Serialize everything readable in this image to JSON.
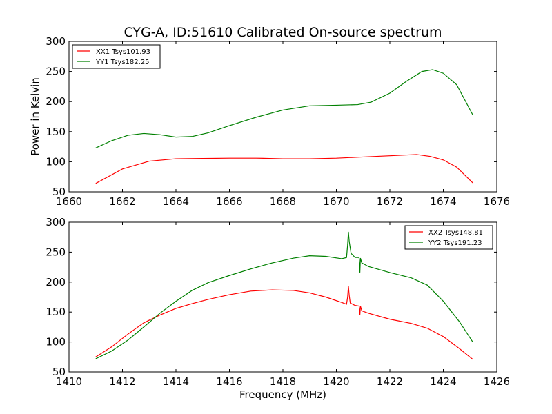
{
  "figure": {
    "title": "CYG-A, ID:51610 Calibrated On-source spectrum"
  },
  "chart_data": [
    {
      "type": "line",
      "title": "CYG-A, ID:51610 Calibrated On-source spectrum",
      "xlabel": "",
      "ylabel": "Power in Kelvin",
      "xlim": [
        1660,
        1676
      ],
      "ylim": [
        50,
        300
      ],
      "xticks": [
        "1660",
        "1662",
        "1664",
        "1666",
        "1668",
        "1670",
        "1672",
        "1674",
        "1676"
      ],
      "yticks": [
        "50",
        "100",
        "150",
        "200",
        "250",
        "300"
      ],
      "legend_position": "upper-left",
      "grid": false,
      "series": [
        {
          "name": "XX1 Tsys101.93",
          "color": "#ff0000",
          "points": [
            [
              1661,
              64
            ],
            [
              1662,
              88
            ],
            [
              1663,
              101
            ],
            [
              1664,
              105
            ],
            [
              1665,
              105.5
            ],
            [
              1666,
              106
            ],
            [
              1667,
              106
            ],
            [
              1668,
              105
            ],
            [
              1669,
              105
            ],
            [
              1670,
              106
            ],
            [
              1671,
              108
            ],
            [
              1672,
              110
            ],
            [
              1673,
              112
            ],
            [
              1673.5,
              109
            ],
            [
              1674,
              103
            ],
            [
              1674.5,
              91
            ],
            [
              1675.1,
              65
            ]
          ]
        },
        {
          "name": "YY1 Tsys182.25",
          "color": "#008000",
          "points": [
            [
              1661,
              123
            ],
            [
              1661.6,
              135
            ],
            [
              1662.2,
              144
            ],
            [
              1662.8,
              147
            ],
            [
              1663.4,
              145
            ],
            [
              1664,
              141
            ],
            [
              1664.6,
              142
            ],
            [
              1665.2,
              148
            ],
            [
              1666,
              160
            ],
            [
              1667,
              174
            ],
            [
              1668,
              186
            ],
            [
              1669,
              193
            ],
            [
              1670,
              194
            ],
            [
              1670.8,
              195
            ],
            [
              1671.3,
              199
            ],
            [
              1672,
              214
            ],
            [
              1672.6,
              233
            ],
            [
              1673.2,
              250
            ],
            [
              1673.6,
              253
            ],
            [
              1674,
              247
            ],
            [
              1674.5,
              228
            ],
            [
              1675.1,
              178
            ]
          ]
        }
      ]
    },
    {
      "type": "line",
      "title": "",
      "xlabel": "Frequency (MHz)",
      "ylabel": "",
      "xlim": [
        1410,
        1426
      ],
      "ylim": [
        50,
        300
      ],
      "xticks": [
        "1410",
        "1412",
        "1414",
        "1416",
        "1418",
        "1420",
        "1422",
        "1424",
        "1426"
      ],
      "yticks": [
        "50",
        "100",
        "150",
        "200",
        "250",
        "300"
      ],
      "legend_position": "upper-right",
      "grid": false,
      "series": [
        {
          "name": "XX2 Tsys148.81",
          "color": "#ff0000",
          "points": [
            [
              1411,
              75
            ],
            [
              1411.6,
              92
            ],
            [
              1412.2,
              113
            ],
            [
              1412.8,
              132
            ],
            [
              1413.4,
              145
            ],
            [
              1414,
              156
            ],
            [
              1414.6,
              164
            ],
            [
              1415.2,
              171
            ],
            [
              1416,
              179
            ],
            [
              1416.8,
              185
            ],
            [
              1417.6,
              187
            ],
            [
              1418.4,
              186
            ],
            [
              1419,
              182
            ],
            [
              1419.6,
              175
            ],
            [
              1420.2,
              166
            ],
            [
              1420.38,
              163
            ],
            [
              1420.42,
              175
            ],
            [
              1420.45,
              193
            ],
            [
              1420.48,
              178
            ],
            [
              1420.52,
              165
            ],
            [
              1420.7,
              161
            ],
            [
              1420.85,
              160
            ],
            [
              1420.88,
              145
            ],
            [
              1420.9,
              160
            ],
            [
              1420.95,
              152
            ],
            [
              1421.2,
              148
            ],
            [
              1422,
              138
            ],
            [
              1422.8,
              131
            ],
            [
              1423.4,
              123
            ],
            [
              1424,
              109
            ],
            [
              1424.6,
              89
            ],
            [
              1425.1,
              71
            ]
          ]
        },
        {
          "name": "YY2 Tsys191.23",
          "color": "#008000",
          "points": [
            [
              1411,
              72
            ],
            [
              1411.6,
              85
            ],
            [
              1412.2,
              103
            ],
            [
              1412.8,
              125
            ],
            [
              1413.4,
              148
            ],
            [
              1414,
              168
            ],
            [
              1414.6,
              186
            ],
            [
              1415.2,
              199
            ],
            [
              1416,
              211
            ],
            [
              1416.8,
              222
            ],
            [
              1417.6,
              232
            ],
            [
              1418.4,
              240
            ],
            [
              1419,
              244
            ],
            [
              1419.6,
              243
            ],
            [
              1420.2,
              239
            ],
            [
              1420.38,
              241
            ],
            [
              1420.42,
              262
            ],
            [
              1420.45,
              284
            ],
            [
              1420.48,
              268
            ],
            [
              1420.55,
              248
            ],
            [
              1420.7,
              241
            ],
            [
              1420.85,
              241
            ],
            [
              1420.88,
              216
            ],
            [
              1420.9,
              240
            ],
            [
              1420.95,
              232
            ],
            [
              1421.2,
              226
            ],
            [
              1422,
              216
            ],
            [
              1422.8,
              207
            ],
            [
              1423.4,
              195
            ],
            [
              1424,
              168
            ],
            [
              1424.6,
              134
            ],
            [
              1425.1,
              100
            ]
          ]
        }
      ]
    }
  ]
}
